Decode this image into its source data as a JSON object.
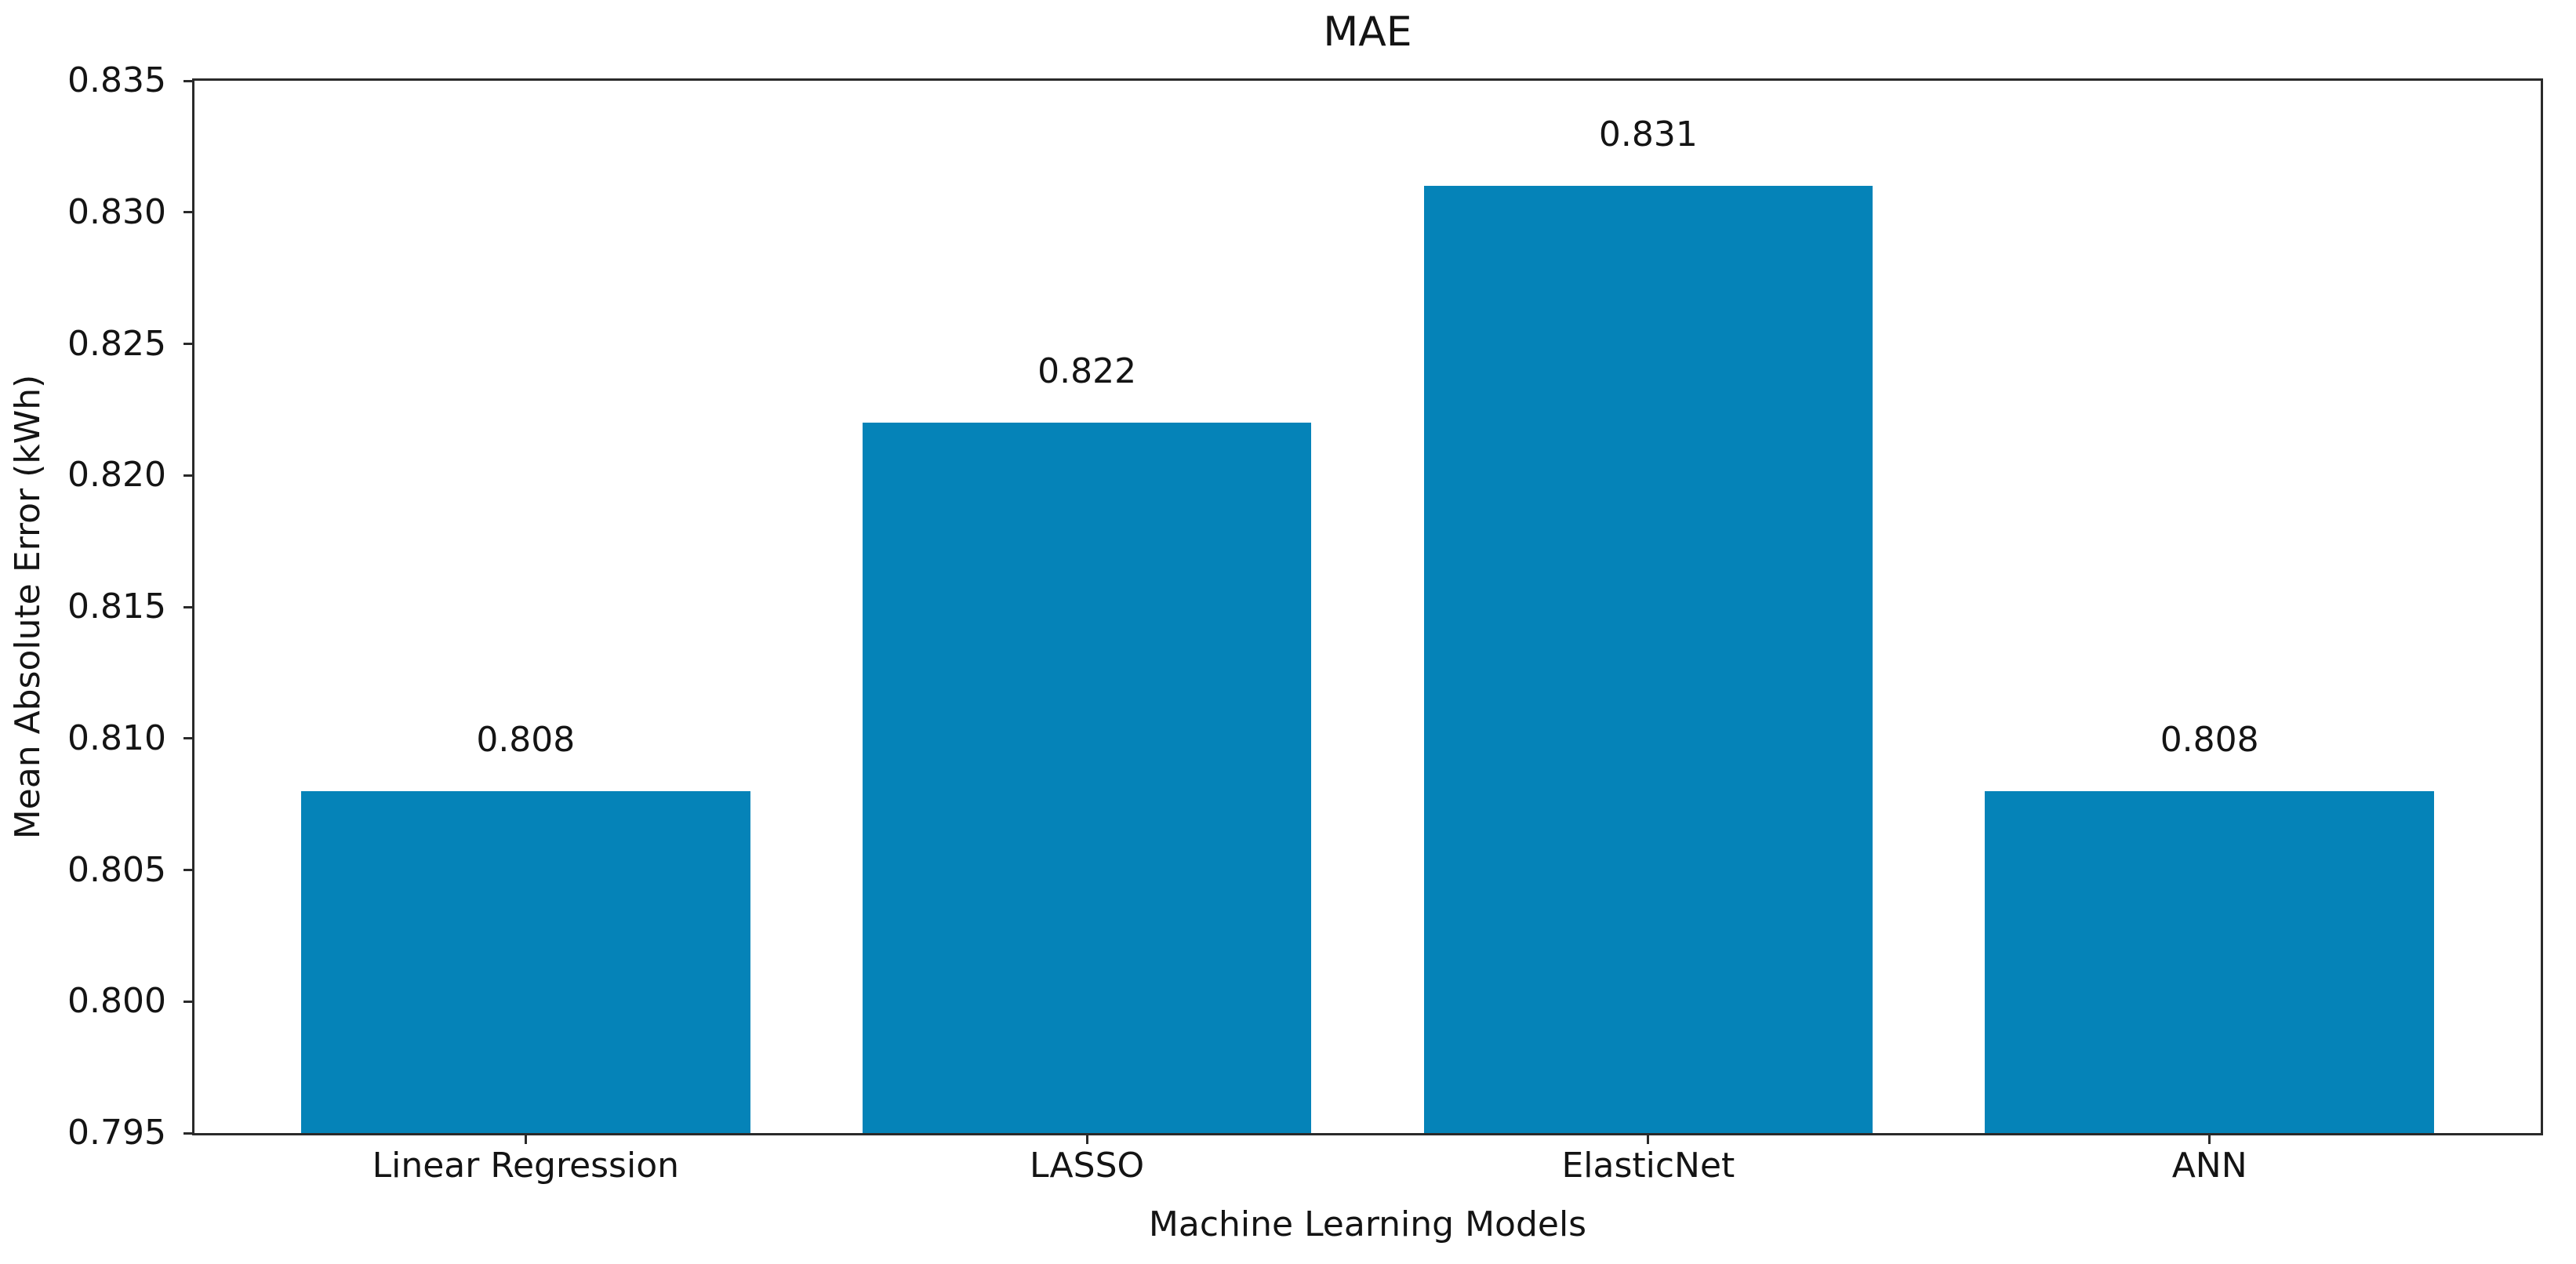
{
  "chart_data": {
    "type": "bar",
    "title": "MAE",
    "xlabel": "Machine Learning Models",
    "ylabel": "Mean Absolute Error (kWh)",
    "categories": [
      "Linear Regression",
      "LASSO",
      "ElasticNet",
      "ANN"
    ],
    "values": [
      0.808,
      0.822,
      0.831,
      0.808
    ],
    "bar_labels": [
      "0.808",
      "0.822",
      "0.831",
      "0.808"
    ],
    "ylim": [
      0.795,
      0.835
    ],
    "ytick_labels": [
      "0.795",
      "0.800",
      "0.805",
      "0.810",
      "0.815",
      "0.820",
      "0.825",
      "0.830",
      "0.835"
    ],
    "bar_width_data_units": 0.8,
    "x_margin_fraction": 0.05,
    "grid": false,
    "legend": "none",
    "colors": {
      "bar": "#0583b8",
      "axis": "#2a2a2a",
      "text": "#141414",
      "background": "#ffffff"
    }
  }
}
